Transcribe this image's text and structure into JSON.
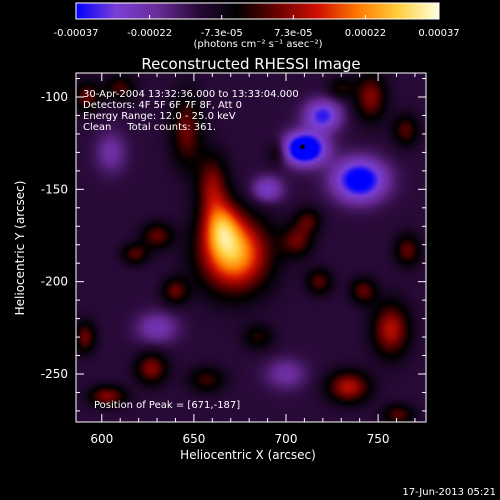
{
  "chart_data": {
    "type": "heatmap",
    "title": "Reconstructed RHESSI Image",
    "xlabel": "Heliocentric X (arcsec)",
    "ylabel": "Heliocentric Y (arcsec)",
    "xlim": [
      586,
      776
    ],
    "ylim": [
      -276,
      -87
    ],
    "x_ticks": [
      600,
      650,
      700,
      750
    ],
    "y_ticks": [
      -100,
      -150,
      -200,
      -250
    ],
    "colorbar": {
      "ticks": [
        "-0.00037",
        "-0.00022",
        "-7.3e-05",
        "7.3e-05",
        "0.00022",
        "0.00037"
      ],
      "tick_values": [
        -0.00037,
        -0.00022,
        -7.3e-05,
        7.3e-05,
        0.00022,
        0.00037
      ],
      "range": [
        -0.00037,
        0.00037
      ],
      "unit_label": "(photons cm⁻² s⁻¹ asec⁻²)",
      "colors": [
        "#0000ff",
        "#7a3fd6",
        "#6a2c9a",
        "#2a0a3a",
        "#000000",
        "#6a0000",
        "#d01000",
        "#ff7a00",
        "#ffd040",
        "#ffffe0"
      ]
    },
    "annotations": [
      "30-Apr-2004 13:32:36.000 to 13:33:04.000",
      "Detectors: 4F 5F 6F 7F 8F, Att 0",
      "Energy Range: 12.0 - 25.0 keV",
      "Clean     Total counts: 361."
    ],
    "peak_text": "Position of Peak = [671,-187]",
    "peak": {
      "x": 671,
      "y": -187
    },
    "minimum_marker": {
      "x": 709,
      "y": -127
    },
    "blobs": [
      {
        "x": 672,
        "y": -185,
        "sx": 13,
        "sy": 14,
        "amp": 0.00037
      },
      {
        "x": 665,
        "y": -170,
        "sx": 7,
        "sy": 10,
        "amp": 0.00022
      },
      {
        "x": 660,
        "y": -148,
        "sx": 6,
        "sy": 12,
        "amp": 0.00018
      },
      {
        "x": 646,
        "y": -118,
        "sx": 6,
        "sy": 14,
        "amp": 0.00016
      },
      {
        "x": 630,
        "y": -175,
        "sx": 6,
        "sy": 5,
        "amp": 0.00015
      },
      {
        "x": 618,
        "y": -185,
        "sx": 5,
        "sy": 4,
        "amp": 0.00014
      },
      {
        "x": 640,
        "y": -205,
        "sx": 5,
        "sy": 5,
        "amp": 0.00015
      },
      {
        "x": 627,
        "y": -247,
        "sx": 6,
        "sy": 6,
        "amp": 0.00018
      },
      {
        "x": 603,
        "y": -262,
        "sx": 7,
        "sy": 4,
        "amp": 0.00018
      },
      {
        "x": 591,
        "y": -230,
        "sx": 4,
        "sy": 6,
        "amp": 0.00016
      },
      {
        "x": 592,
        "y": -100,
        "sx": 5,
        "sy": 6,
        "amp": 0.00015
      },
      {
        "x": 610,
        "y": -95,
        "sx": 6,
        "sy": 5,
        "amp": 0.00013
      },
      {
        "x": 657,
        "y": -253,
        "sx": 7,
        "sy": 5,
        "amp": 0.00012
      },
      {
        "x": 706,
        "y": -178,
        "sx": 6,
        "sy": 6,
        "amp": 0.00015
      },
      {
        "x": 718,
        "y": -200,
        "sx": 5,
        "sy": 5,
        "amp": 0.00014
      },
      {
        "x": 712,
        "y": -167,
        "sx": 5,
        "sy": 5,
        "amp": 0.00013
      },
      {
        "x": 734,
        "y": -257,
        "sx": 8,
        "sy": 6,
        "amp": 0.00022
      },
      {
        "x": 757,
        "y": -226,
        "sx": 7,
        "sy": 10,
        "amp": 0.00022
      },
      {
        "x": 742,
        "y": -205,
        "sx": 5,
        "sy": 5,
        "amp": 0.00015
      },
      {
        "x": 766,
        "y": -183,
        "sx": 5,
        "sy": 6,
        "amp": 0.00015
      },
      {
        "x": 761,
        "y": -272,
        "sx": 6,
        "sy": 4,
        "amp": 0.00014
      },
      {
        "x": 746,
        "y": -100,
        "sx": 6,
        "sy": 9,
        "amp": 0.00018
      },
      {
        "x": 765,
        "y": -118,
        "sx": 5,
        "sy": 6,
        "amp": 0.00014
      },
      {
        "x": 730,
        "y": -95,
        "sx": 5,
        "sy": 4,
        "amp": 0.0001
      },
      {
        "x": 685,
        "y": -230,
        "sx": 6,
        "sy": 5,
        "amp": 0.0001
      },
      {
        "x": 695,
        "y": -130,
        "sx": 4,
        "sy": 5,
        "amp": 9e-05
      },
      {
        "x": 710,
        "y": -128,
        "sx": 8,
        "sy": 6,
        "amp": -0.00037
      },
      {
        "x": 740,
        "y": -145,
        "sx": 10,
        "sy": 8,
        "amp": -0.0003
      },
      {
        "x": 720,
        "y": -110,
        "sx": 7,
        "sy": 6,
        "amp": -0.00022
      },
      {
        "x": 690,
        "y": -150,
        "sx": 6,
        "sy": 5,
        "amp": -0.00015
      },
      {
        "x": 630,
        "y": -225,
        "sx": 8,
        "sy": 6,
        "amp": -0.00012
      },
      {
        "x": 700,
        "y": -250,
        "sx": 8,
        "sy": 6,
        "amp": -0.0001
      },
      {
        "x": 605,
        "y": -130,
        "sx": 6,
        "sy": 8,
        "amp": -0.0001
      }
    ],
    "baseline": -0.00012
  },
  "footer": {
    "date": "17-Jun-2013 05:21"
  }
}
